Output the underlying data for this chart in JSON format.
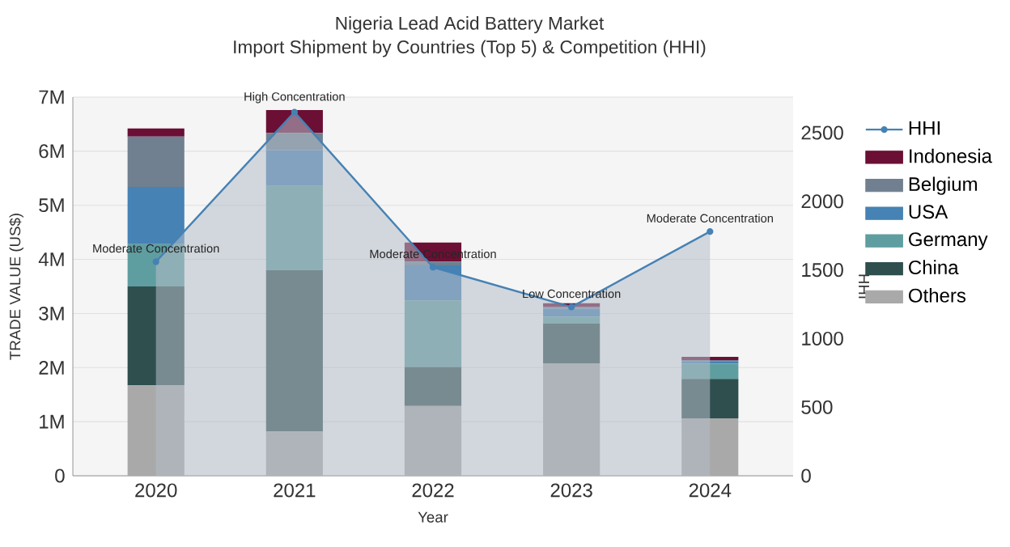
{
  "chart_data": {
    "type": "bar",
    "stacked": true,
    "title": "Nigeria Lead Acid Battery Market",
    "subtitle": "Import Shipment by Countries (Top 5) & Competition (HHI)",
    "xlabel": "Year",
    "ylabel": "TRADE VALUE (US$)",
    "y2label": "HHI",
    "categories": [
      "2020",
      "2021",
      "2022",
      "2023",
      "2024"
    ],
    "series": [
      {
        "name": "Others",
        "color": "#a9a9a9",
        "values": [
          1670000,
          820000,
          1290000,
          2080000,
          1060000
        ]
      },
      {
        "name": "China",
        "color": "#2f4f4f",
        "values": [
          1830000,
          2980000,
          720000,
          730000,
          730000
        ]
      },
      {
        "name": "Germany",
        "color": "#5f9ea0",
        "values": [
          780000,
          1560000,
          1230000,
          130000,
          280000
        ]
      },
      {
        "name": "USA",
        "color": "#4682b4",
        "values": [
          1060000,
          660000,
          650000,
          150000,
          50000
        ]
      },
      {
        "name": "Belgium",
        "color": "#708090",
        "values": [
          930000,
          320000,
          70000,
          30000,
          20000
        ]
      },
      {
        "name": "Indonesia",
        "color": "#6b0f35",
        "values": [
          150000,
          420000,
          350000,
          70000,
          60000
        ]
      },
      {
        "name": "HHI",
        "type": "area",
        "axis": "y2",
        "color": "#4682b4",
        "marker": "circle",
        "values": [
          1560,
          2650,
          1520,
          1230,
          1780
        ]
      }
    ],
    "ylim": [
      0,
      7000000
    ],
    "yticks": [
      0,
      {
        "value": 1000000,
        "label": "1M"
      },
      {
        "value": 2000000,
        "label": "2M"
      },
      {
        "value": 3000000,
        "label": "3M"
      },
      {
        "value": 4000000,
        "label": "4M"
      },
      {
        "value": 5000000,
        "label": "5M"
      },
      {
        "value": 6000000,
        "label": "6M"
      },
      {
        "value": 7000000,
        "label": "7M"
      }
    ],
    "y2lim": [
      0,
      2760
    ],
    "y2ticks": [
      0,
      500,
      1000,
      1500,
      2000,
      2500
    ],
    "grid": "y",
    "legend": "top right",
    "annotations": [
      "Moderate Concentration",
      "High Concentration",
      "Moderate Concentration",
      "Low Concentration",
      "Moderate Concentration"
    ]
  }
}
